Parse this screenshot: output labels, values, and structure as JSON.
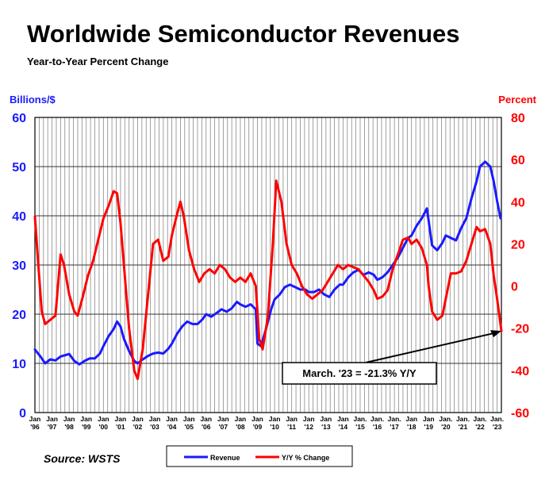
{
  "chart_data": {
    "type": "line",
    "title": "Worldwide Semiconductor Revenues",
    "subtitle": "Year-to-Year Percent Change",
    "y_left_label": "Billions/$",
    "y_right_label": "Percent",
    "y_left_ticks": [
      "0",
      "10",
      "20",
      "30",
      "40",
      "50",
      "60"
    ],
    "y_right_ticks": [
      "-60",
      "-40",
      "-20",
      "0",
      "20",
      "40",
      "60",
      "80"
    ],
    "ylim_left": [
      0,
      60
    ],
    "ylim_right": [
      -60,
      80
    ],
    "x_tick_labels": [
      [
        "Jan",
        "'96"
      ],
      [
        "Jan",
        "'97"
      ],
      [
        "Jan",
        "'98"
      ],
      [
        "Jan",
        "'99"
      ],
      [
        "Jan",
        "'00"
      ],
      [
        "Jan",
        "'01"
      ],
      [
        "Jan",
        "'02"
      ],
      [
        "Jan",
        "'03"
      ],
      [
        "Jan",
        "'04"
      ],
      [
        "Jan",
        "'05"
      ],
      [
        "Jan",
        "'06"
      ],
      [
        "Jan",
        "'07"
      ],
      [
        "Jan",
        "'08"
      ],
      [
        "Jan",
        "'09"
      ],
      [
        "Jan",
        "'10"
      ],
      [
        "Jan",
        "'11"
      ],
      [
        "Jan",
        "'12"
      ],
      [
        "Jan",
        "'13"
      ],
      [
        "Jan",
        "'14"
      ],
      [
        "Jan.",
        "'15"
      ],
      [
        "Jan.",
        "'16"
      ],
      [
        "Jan.",
        "'17"
      ],
      [
        "Jan",
        "'18"
      ],
      [
        "Jan",
        "'19"
      ],
      [
        "Jan.",
        "'20"
      ],
      [
        "Jan.",
        "'21"
      ],
      [
        "Jan.",
        "'22"
      ],
      [
        "Jan.",
        "'23"
      ]
    ],
    "x_range": [
      1996.0,
      2023.25
    ],
    "grid": true,
    "legend_placement": "bottom-center",
    "series": [
      {
        "name": "Revenue",
        "axis": "left",
        "color": "#1a1aff",
        "points": [
          [
            1996.0,
            12.8
          ],
          [
            1996.3,
            11.5
          ],
          [
            1996.6,
            10.0
          ],
          [
            1996.9,
            10.8
          ],
          [
            1997.2,
            10.6
          ],
          [
            1997.5,
            11.4
          ],
          [
            1997.8,
            11.7
          ],
          [
            1998.0,
            11.9
          ],
          [
            1998.3,
            10.5
          ],
          [
            1998.6,
            9.8
          ],
          [
            1998.9,
            10.5
          ],
          [
            1999.2,
            11.0
          ],
          [
            1999.5,
            11.0
          ],
          [
            1999.8,
            12.0
          ],
          [
            2000.0,
            13.5
          ],
          [
            2000.3,
            15.5
          ],
          [
            2000.6,
            17.0
          ],
          [
            2000.8,
            18.5
          ],
          [
            2001.0,
            17.5
          ],
          [
            2001.2,
            15.0
          ],
          [
            2001.5,
            12.5
          ],
          [
            2001.8,
            10.5
          ],
          [
            2002.0,
            10.0
          ],
          [
            2002.3,
            10.8
          ],
          [
            2002.6,
            11.5
          ],
          [
            2002.9,
            12.0
          ],
          [
            2003.2,
            12.2
          ],
          [
            2003.5,
            12.0
          ],
          [
            2003.8,
            13.0
          ],
          [
            2004.0,
            14.0
          ],
          [
            2004.3,
            16.0
          ],
          [
            2004.6,
            17.5
          ],
          [
            2004.9,
            18.5
          ],
          [
            2005.2,
            18.0
          ],
          [
            2005.5,
            18.0
          ],
          [
            2005.8,
            19.0
          ],
          [
            2006.0,
            20.0
          ],
          [
            2006.3,
            19.5
          ],
          [
            2006.6,
            20.2
          ],
          [
            2006.9,
            21.0
          ],
          [
            2007.2,
            20.5
          ],
          [
            2007.5,
            21.2
          ],
          [
            2007.8,
            22.5
          ],
          [
            2008.0,
            22.0
          ],
          [
            2008.3,
            21.5
          ],
          [
            2008.6,
            22.0
          ],
          [
            2008.9,
            21.0
          ],
          [
            2009.0,
            14.0
          ],
          [
            2009.2,
            13.5
          ],
          [
            2009.5,
            17.0
          ],
          [
            2009.8,
            21.0
          ],
          [
            2010.0,
            23.0
          ],
          [
            2010.3,
            24.0
          ],
          [
            2010.6,
            25.5
          ],
          [
            2010.9,
            26.0
          ],
          [
            2011.2,
            25.5
          ],
          [
            2011.5,
            25.0
          ],
          [
            2011.8,
            25.0
          ],
          [
            2012.0,
            24.5
          ],
          [
            2012.3,
            24.5
          ],
          [
            2012.6,
            25.0
          ],
          [
            2012.9,
            24.0
          ],
          [
            2013.2,
            23.5
          ],
          [
            2013.5,
            25.0
          ],
          [
            2013.8,
            26.0
          ],
          [
            2014.0,
            26.0
          ],
          [
            2014.3,
            27.5
          ],
          [
            2014.6,
            28.5
          ],
          [
            2014.9,
            29.0
          ],
          [
            2015.2,
            28.0
          ],
          [
            2015.5,
            28.5
          ],
          [
            2015.8,
            28.0
          ],
          [
            2016.0,
            27.0
          ],
          [
            2016.3,
            27.5
          ],
          [
            2016.6,
            28.5
          ],
          [
            2016.9,
            30.0
          ],
          [
            2017.2,
            31.5
          ],
          [
            2017.5,
            33.5
          ],
          [
            2017.8,
            35.5
          ],
          [
            2018.0,
            36.0
          ],
          [
            2018.3,
            38.0
          ],
          [
            2018.6,
            39.5
          ],
          [
            2018.9,
            41.5
          ],
          [
            2019.0,
            39.0
          ],
          [
            2019.2,
            34.0
          ],
          [
            2019.5,
            33.0
          ],
          [
            2019.8,
            34.5
          ],
          [
            2020.0,
            36.0
          ],
          [
            2020.3,
            35.5
          ],
          [
            2020.6,
            35.0
          ],
          [
            2020.9,
            37.5
          ],
          [
            2021.2,
            39.5
          ],
          [
            2021.5,
            43.5
          ],
          [
            2021.8,
            47.0
          ],
          [
            2022.0,
            50.0
          ],
          [
            2022.3,
            51.0
          ],
          [
            2022.6,
            50.0
          ],
          [
            2022.8,
            47.0
          ],
          [
            2023.0,
            43.0
          ],
          [
            2023.2,
            39.5
          ]
        ]
      },
      {
        "name": "Y/Y % Change",
        "axis": "right",
        "color": "#ff0000",
        "points": [
          [
            1996.0,
            33.0
          ],
          [
            1996.2,
            10.0
          ],
          [
            1996.4,
            -12.0
          ],
          [
            1996.6,
            -18.0
          ],
          [
            1996.9,
            -16.0
          ],
          [
            1997.2,
            -14.0
          ],
          [
            1997.5,
            15.0
          ],
          [
            1997.7,
            10.0
          ],
          [
            1998.0,
            -4.0
          ],
          [
            1998.3,
            -12.0
          ],
          [
            1998.5,
            -14.0
          ],
          [
            1998.8,
            -5.0
          ],
          [
            1999.1,
            5.0
          ],
          [
            1999.4,
            12.0
          ],
          [
            1999.7,
            22.0
          ],
          [
            2000.0,
            32.0
          ],
          [
            2000.3,
            38.0
          ],
          [
            2000.6,
            45.0
          ],
          [
            2000.8,
            44.0
          ],
          [
            2001.0,
            30.0
          ],
          [
            2001.2,
            10.0
          ],
          [
            2001.5,
            -20.0
          ],
          [
            2001.8,
            -40.0
          ],
          [
            2002.0,
            -44.0
          ],
          [
            2002.3,
            -30.0
          ],
          [
            2002.6,
            -5.0
          ],
          [
            2002.9,
            20.0
          ],
          [
            2003.2,
            22.0
          ],
          [
            2003.5,
            12.0
          ],
          [
            2003.8,
            14.0
          ],
          [
            2004.0,
            24.0
          ],
          [
            2004.3,
            34.0
          ],
          [
            2004.5,
            40.0
          ],
          [
            2004.7,
            33.0
          ],
          [
            2005.0,
            17.0
          ],
          [
            2005.3,
            8.0
          ],
          [
            2005.6,
            2.0
          ],
          [
            2005.9,
            6.0
          ],
          [
            2006.2,
            8.0
          ],
          [
            2006.5,
            6.0
          ],
          [
            2006.8,
            10.0
          ],
          [
            2007.1,
            8.0
          ],
          [
            2007.4,
            4.0
          ],
          [
            2007.7,
            2.0
          ],
          [
            2008.0,
            4.0
          ],
          [
            2008.3,
            2.0
          ],
          [
            2008.6,
            6.0
          ],
          [
            2008.9,
            0.0
          ],
          [
            2009.1,
            -25.0
          ],
          [
            2009.3,
            -30.0
          ],
          [
            2009.6,
            -15.0
          ],
          [
            2009.9,
            20.0
          ],
          [
            2010.1,
            50.0
          ],
          [
            2010.4,
            40.0
          ],
          [
            2010.7,
            20.0
          ],
          [
            2011.0,
            10.0
          ],
          [
            2011.3,
            6.0
          ],
          [
            2011.6,
            0.0
          ],
          [
            2011.9,
            -4.0
          ],
          [
            2012.2,
            -6.0
          ],
          [
            2012.5,
            -4.0
          ],
          [
            2012.8,
            -2.0
          ],
          [
            2013.1,
            2.0
          ],
          [
            2013.4,
            6.0
          ],
          [
            2013.7,
            10.0
          ],
          [
            2014.0,
            8.0
          ],
          [
            2014.3,
            10.0
          ],
          [
            2014.6,
            9.0
          ],
          [
            2014.9,
            8.0
          ],
          [
            2015.2,
            5.0
          ],
          [
            2015.5,
            2.0
          ],
          [
            2015.8,
            -2.0
          ],
          [
            2016.0,
            -6.0
          ],
          [
            2016.3,
            -5.0
          ],
          [
            2016.6,
            -2.0
          ],
          [
            2016.9,
            8.0
          ],
          [
            2017.2,
            15.0
          ],
          [
            2017.5,
            22.0
          ],
          [
            2017.8,
            23.0
          ],
          [
            2018.0,
            20.0
          ],
          [
            2018.3,
            22.0
          ],
          [
            2018.6,
            18.0
          ],
          [
            2018.9,
            10.0
          ],
          [
            2019.0,
            0.0
          ],
          [
            2019.2,
            -12.0
          ],
          [
            2019.5,
            -16.0
          ],
          [
            2019.8,
            -14.0
          ],
          [
            2020.0,
            -6.0
          ],
          [
            2020.3,
            6.0
          ],
          [
            2020.6,
            6.0
          ],
          [
            2020.9,
            7.0
          ],
          [
            2021.2,
            12.0
          ],
          [
            2021.5,
            20.0
          ],
          [
            2021.8,
            28.0
          ],
          [
            2022.0,
            26.0
          ],
          [
            2022.3,
            27.0
          ],
          [
            2022.6,
            20.0
          ],
          [
            2022.8,
            5.0
          ],
          [
            2023.0,
            -6.0
          ],
          [
            2023.25,
            -21.3
          ]
        ]
      }
    ],
    "annotation": {
      "text": "March. '23 = -21.3% Y/Y",
      "target_x": 2023.25,
      "target_y": -21.3
    },
    "source": "Source: WSTS"
  },
  "colors": {
    "revenue": "#1a1aff",
    "percent": "#ff0000",
    "grid": "#000000",
    "text": "#000000"
  }
}
